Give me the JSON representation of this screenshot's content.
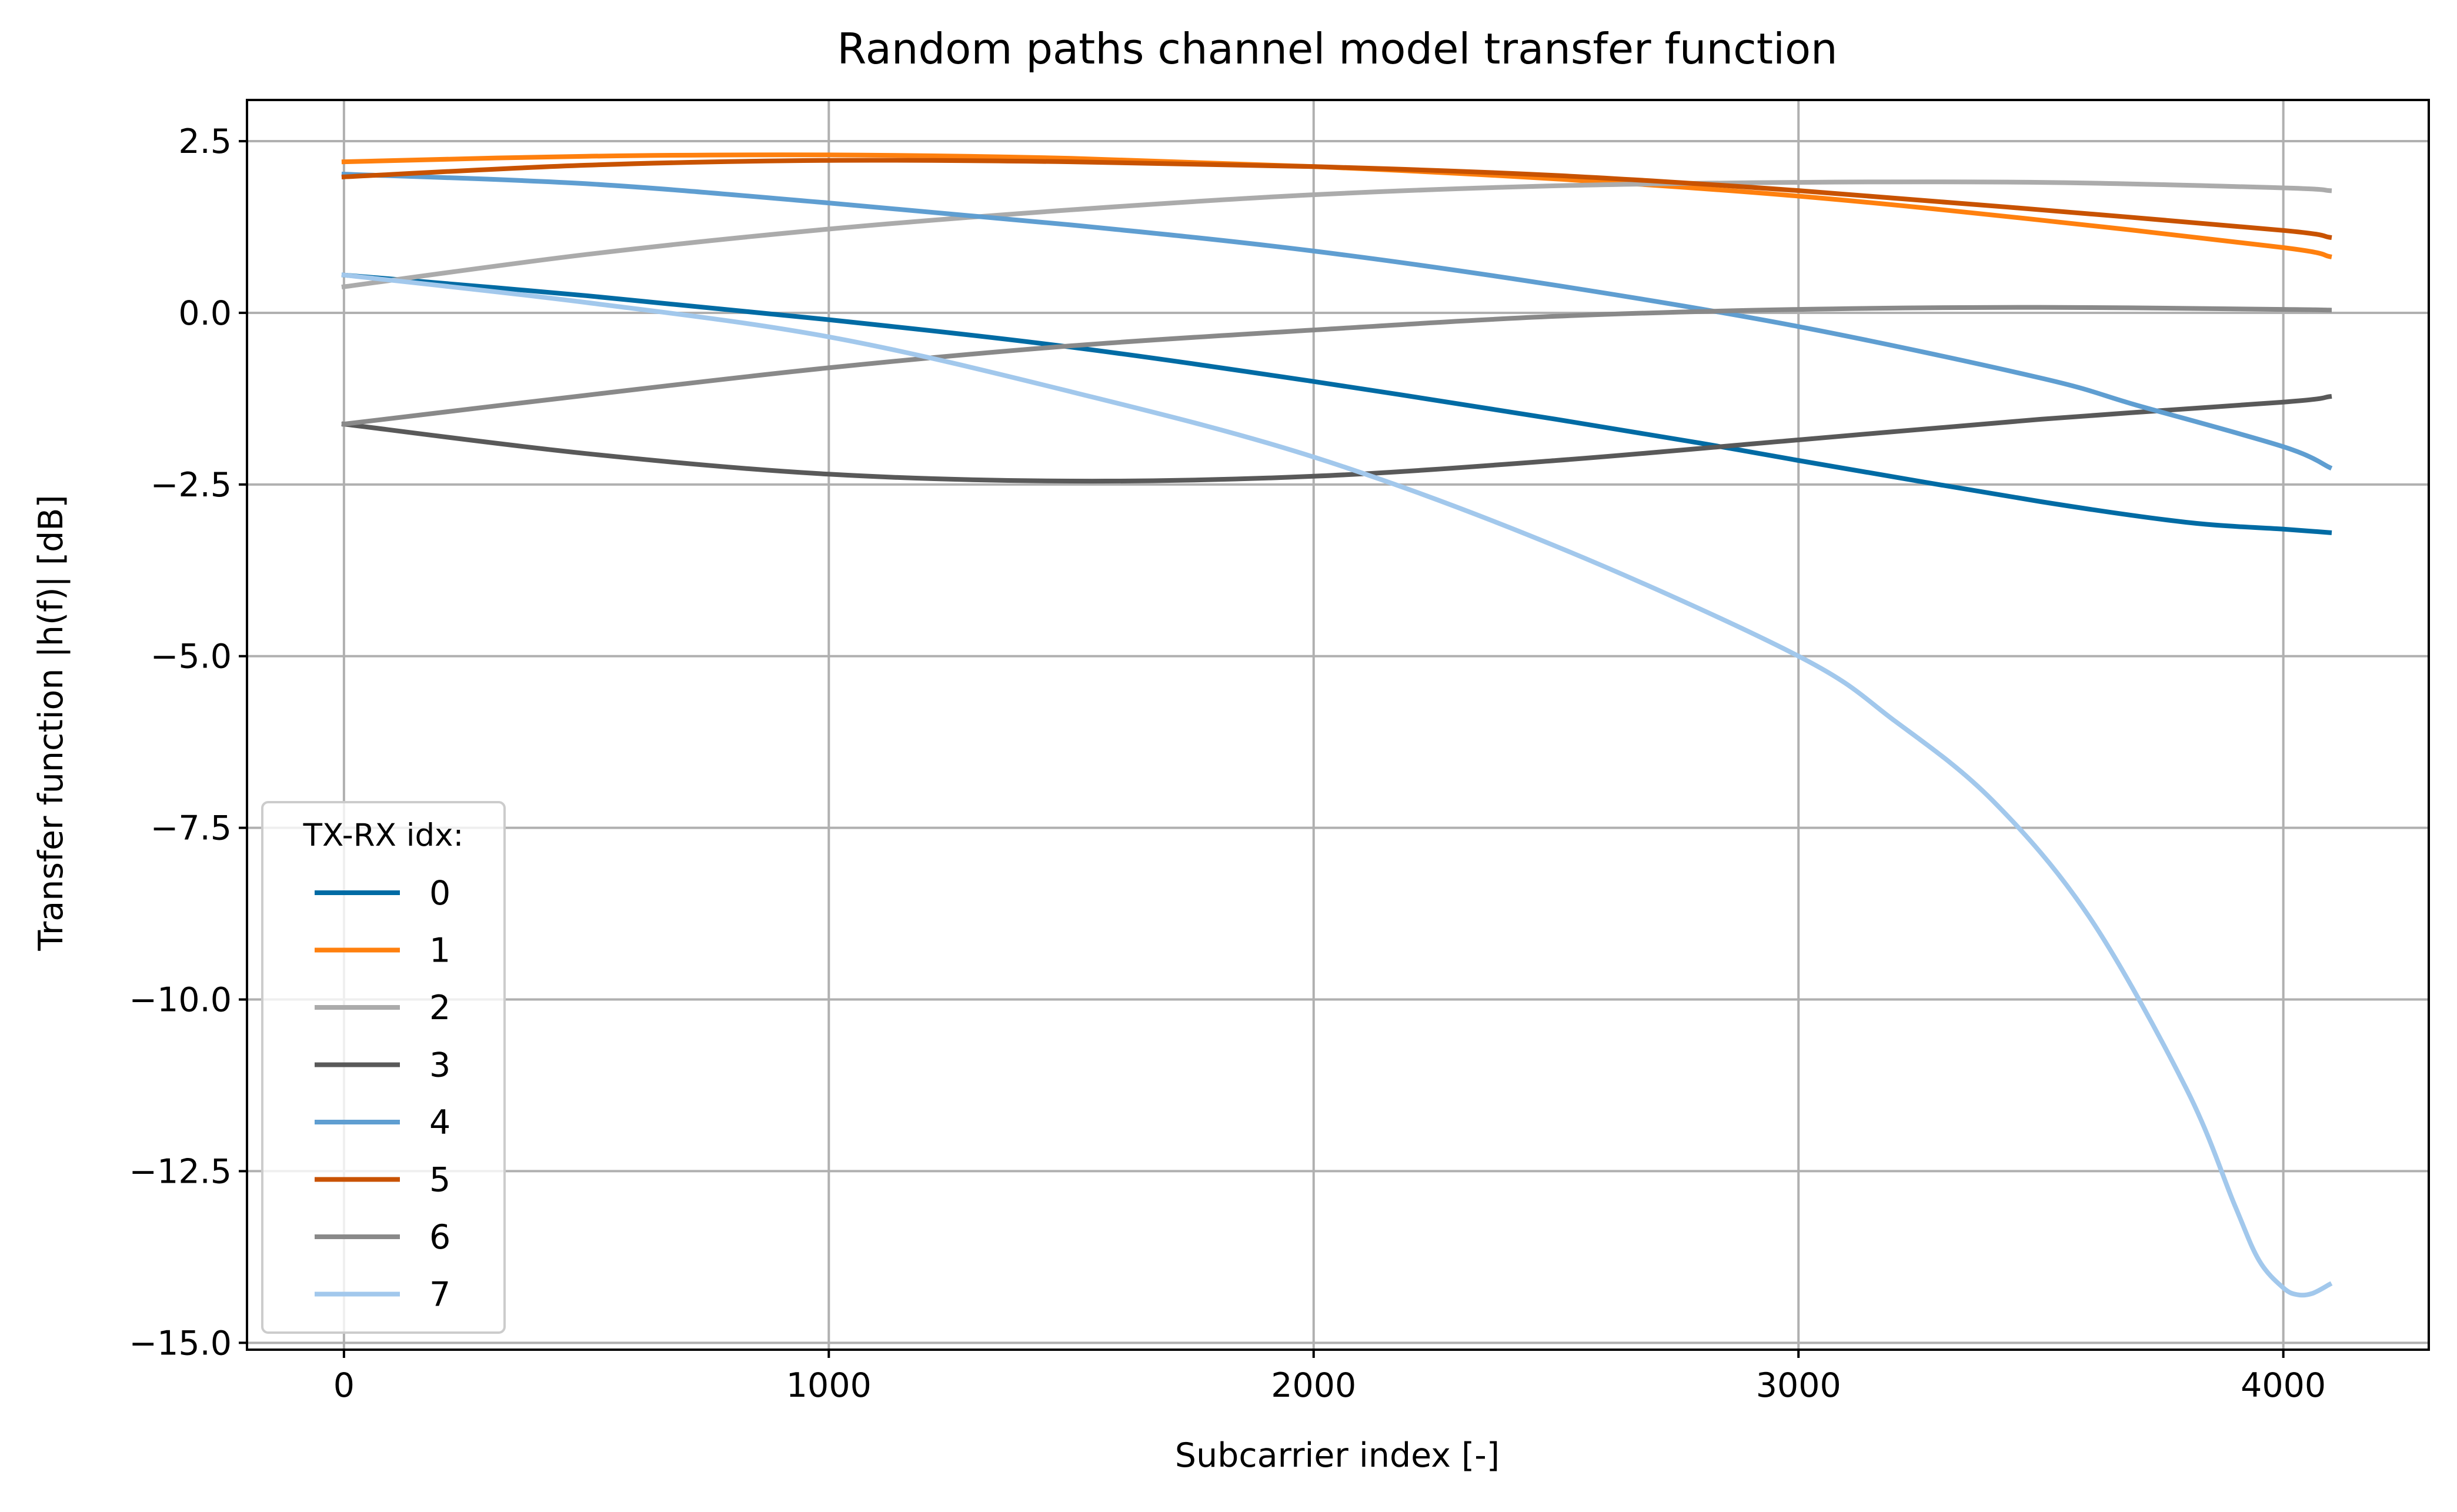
{
  "chart_data": {
    "type": "line",
    "title": "Random paths channel model transfer function",
    "xlabel": "Subcarrier index [-]",
    "ylabel": "Transfer function |h(f)| [dB]",
    "xlim": [
      -200,
      4300
    ],
    "ylim": [
      -15.1,
      3.1
    ],
    "xticks": [
      0,
      1000,
      2000,
      3000,
      4000
    ],
    "xtick_labels": [
      "0",
      "1000",
      "2000",
      "3000",
      "4000"
    ],
    "yticks": [
      2.5,
      0.0,
      -2.5,
      -5.0,
      -7.5,
      -10.0,
      -12.5,
      -15.0
    ],
    "ytick_labels": [
      "2.5",
      "0.0",
      "−2.5",
      "−5.0",
      "−7.5",
      "−10.0",
      "−12.5",
      "−15.0"
    ],
    "grid": true,
    "legend": {
      "title": "TX-RX idx:",
      "placement": "lower-left"
    },
    "series": [
      {
        "name": "0",
        "color": "#006BA4",
        "x": [
          0,
          500,
          1000,
          1500,
          2000,
          2500,
          2800,
          3000,
          3500,
          3800,
          4000,
          4095
        ],
        "y": [
          0.55,
          0.25,
          -0.1,
          -0.5,
          -1.0,
          -1.55,
          -1.9,
          -2.15,
          -2.75,
          -3.05,
          -3.15,
          -3.2
        ]
      },
      {
        "name": "1",
        "color": "#FF800E",
        "x": [
          0,
          500,
          1000,
          1500,
          2000,
          2500,
          3000,
          3500,
          4000,
          4095
        ],
        "y": [
          2.2,
          2.28,
          2.3,
          2.25,
          2.13,
          1.95,
          1.7,
          1.35,
          0.95,
          0.82
        ]
      },
      {
        "name": "2",
        "color": "#ABABAB",
        "x": [
          0,
          500,
          1000,
          1500,
          2000,
          2500,
          3000,
          3500,
          4000,
          4095
        ],
        "y": [
          0.38,
          0.85,
          1.22,
          1.5,
          1.72,
          1.85,
          1.9,
          1.9,
          1.82,
          1.78
        ]
      },
      {
        "name": "3",
        "color": "#595959",
        "x": [
          0,
          500,
          1000,
          1500,
          2000,
          2500,
          3000,
          3500,
          4000,
          4095
        ],
        "y": [
          -1.62,
          -2.05,
          -2.35,
          -2.45,
          -2.38,
          -2.15,
          -1.85,
          -1.55,
          -1.3,
          -1.22
        ]
      },
      {
        "name": "4",
        "color": "#5F9ED1",
        "x": [
          0,
          500,
          1000,
          1500,
          2000,
          2500,
          3000,
          3500,
          3700,
          4000,
          4095
        ],
        "y": [
          2.02,
          1.88,
          1.6,
          1.28,
          0.9,
          0.4,
          -0.2,
          -0.95,
          -1.35,
          -1.95,
          -2.25
        ]
      },
      {
        "name": "5",
        "color": "#C85200",
        "x": [
          0,
          500,
          1000,
          1500,
          2000,
          2500,
          3000,
          3500,
          4000,
          4095
        ],
        "y": [
          1.98,
          2.15,
          2.22,
          2.2,
          2.13,
          2.0,
          1.78,
          1.5,
          1.2,
          1.1
        ]
      },
      {
        "name": "6",
        "color": "#898989",
        "x": [
          0,
          500,
          1000,
          1500,
          2000,
          2500,
          3000,
          3500,
          4000,
          4095
        ],
        "y": [
          -1.62,
          -1.2,
          -0.8,
          -0.48,
          -0.25,
          -0.05,
          0.05,
          0.08,
          0.05,
          0.04
        ]
      },
      {
        "name": "7",
        "color": "#A2C8EC",
        "x": [
          0,
          500,
          1000,
          1500,
          2000,
          2500,
          3000,
          3200,
          3400,
          3600,
          3800,
          3900,
          3950,
          4000,
          4030,
          4060,
          4095
        ],
        "y": [
          0.55,
          0.15,
          -0.35,
          -1.15,
          -2.1,
          -3.4,
          -5.0,
          -5.95,
          -7.1,
          -8.8,
          -11.3,
          -13.0,
          -13.8,
          -14.2,
          -14.3,
          -14.28,
          -14.15
        ]
      }
    ]
  }
}
